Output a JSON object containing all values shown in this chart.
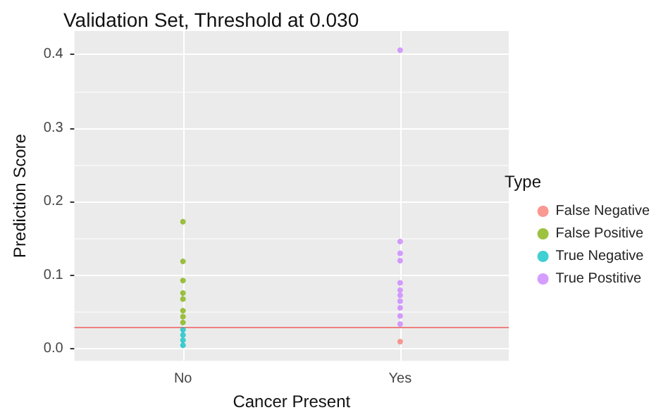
{
  "chart_data": {
    "type": "scatter",
    "title": "Validation Set, Threshold at 0.030",
    "xlabel": "Cancer Present",
    "ylabel": "Prediction Score",
    "legend_title": "Type",
    "categories": [
      "No",
      "Yes"
    ],
    "ylim": [
      -0.016,
      0.432
    ],
    "yticks": [
      {
        "value": 0,
        "label": "0.0"
      },
      0.1,
      0.2,
      0.3,
      0.4
    ],
    "grid": true,
    "legend": "right",
    "marker": "circle",
    "ref_lines": [
      {
        "axis": "y",
        "value": 0.03,
        "color": "#f08080"
      }
    ],
    "series": [
      {
        "name": "False Negative",
        "color": "#f8766d",
        "x": [
          "Yes"
        ],
        "values": [
          0.01
        ]
      },
      {
        "name": "False Positive",
        "color": "#7cae00",
        "x": [
          "No",
          "No",
          "No",
          "No",
          "No",
          "No",
          "No",
          "No"
        ],
        "values": [
          0.173,
          0.119,
          0.093,
          0.076,
          0.068,
          0.052,
          0.044,
          0.036
        ]
      },
      {
        "name": "True Negative",
        "color": "#00bfc4",
        "x": [
          "No",
          "No",
          "No",
          "No"
        ],
        "values": [
          0.005,
          0.012,
          0.019,
          0.026
        ]
      },
      {
        "name": "True Postitive",
        "color": "#c77cff",
        "x": [
          "Yes",
          "Yes",
          "Yes",
          "Yes",
          "Yes",
          "Yes",
          "Yes",
          "Yes",
          "Yes",
          "Yes",
          "Yes"
        ],
        "values": [
          0.406,
          0.146,
          0.13,
          0.12,
          0.09,
          0.08,
          0.073,
          0.065,
          0.056,
          0.045,
          0.034
        ]
      }
    ]
  }
}
